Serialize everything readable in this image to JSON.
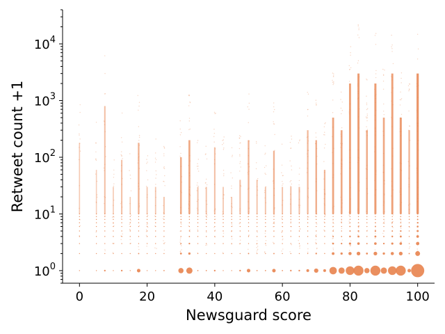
{
  "chart_data": {
    "type": "scatter",
    "title": "",
    "xlabel": "Newsguard score",
    "ylabel": "Retweet count +1",
    "xlim": [
      -5,
      105
    ],
    "ylim": [
      0.6,
      40000
    ],
    "yscale": "log",
    "grid": false,
    "legend": "none",
    "marker_color": "#e8834e",
    "x_ticks": [
      0,
      20,
      40,
      60,
      80,
      100
    ],
    "x_tick_labels": [
      "0",
      "20",
      "40",
      "60",
      "80",
      "100"
    ],
    "y_ticks": [
      1,
      10,
      100,
      1000,
      10000
    ],
    "y_tick_labels": [
      {
        "base": "10",
        "exp": "0"
      },
      {
        "base": "10",
        "exp": "1"
      },
      {
        "base": "10",
        "exp": "2"
      },
      {
        "base": "10",
        "exp": "3"
      },
      {
        "base": "10",
        "exp": "4"
      }
    ],
    "score_columns": [
      {
        "x": 0,
        "ymax": 180,
        "weight": 0.3
      },
      {
        "x": 5,
        "ymax": 60,
        "weight": 0.25
      },
      {
        "x": 7.5,
        "ymax": 800,
        "weight": 0.45
      },
      {
        "x": 10,
        "ymax": 30,
        "weight": 0.3
      },
      {
        "x": 12.5,
        "ymax": 90,
        "weight": 0.45
      },
      {
        "x": 15,
        "ymax": 20,
        "weight": 0.3
      },
      {
        "x": 17.5,
        "ymax": 180,
        "weight": 0.6
      },
      {
        "x": 20,
        "ymax": 30,
        "weight": 0.35
      },
      {
        "x": 22.5,
        "ymax": 30,
        "weight": 0.35
      },
      {
        "x": 25,
        "ymax": 20,
        "weight": 0.4
      },
      {
        "x": 30,
        "ymax": 100,
        "weight": 0.7
      },
      {
        "x": 32.5,
        "ymax": 200,
        "weight": 0.75
      },
      {
        "x": 35,
        "ymax": 30,
        "weight": 0.4
      },
      {
        "x": 37.5,
        "ymax": 30,
        "weight": 0.4
      },
      {
        "x": 40,
        "ymax": 150,
        "weight": 0.45
      },
      {
        "x": 42.5,
        "ymax": 30,
        "weight": 0.35
      },
      {
        "x": 45,
        "ymax": 20,
        "weight": 0.35
      },
      {
        "x": 47.5,
        "ymax": 40,
        "weight": 0.45
      },
      {
        "x": 50,
        "ymax": 200,
        "weight": 0.6
      },
      {
        "x": 52.5,
        "ymax": 40,
        "weight": 0.4
      },
      {
        "x": 55,
        "ymax": 30,
        "weight": 0.4
      },
      {
        "x": 57.5,
        "ymax": 130,
        "weight": 0.6
      },
      {
        "x": 60,
        "ymax": 30,
        "weight": 0.4
      },
      {
        "x": 62.5,
        "ymax": 30,
        "weight": 0.45
      },
      {
        "x": 65,
        "ymax": 30,
        "weight": 0.45
      },
      {
        "x": 67.5,
        "ymax": 300,
        "weight": 0.55
      },
      {
        "x": 70,
        "ymax": 200,
        "weight": 0.65
      },
      {
        "x": 72.5,
        "ymax": 60,
        "weight": 0.55
      },
      {
        "x": 75,
        "ymax": 500,
        "weight": 0.8
      },
      {
        "x": 77.5,
        "ymax": 300,
        "weight": 0.75
      },
      {
        "x": 80,
        "ymax": 2000,
        "weight": 0.85
      },
      {
        "x": 82.5,
        "ymax": 3000,
        "weight": 0.9
      },
      {
        "x": 85,
        "ymax": 300,
        "weight": 0.7
      },
      {
        "x": 87.5,
        "ymax": 2000,
        "weight": 0.9
      },
      {
        "x": 90,
        "ymax": 500,
        "weight": 0.75
      },
      {
        "x": 92.5,
        "ymax": 3000,
        "weight": 0.85
      },
      {
        "x": 95,
        "ymax": 500,
        "weight": 0.9
      },
      {
        "x": 97.5,
        "ymax": 300,
        "weight": 0.6
      },
      {
        "x": 100,
        "ymax": 3000,
        "weight": 1.0
      }
    ]
  }
}
